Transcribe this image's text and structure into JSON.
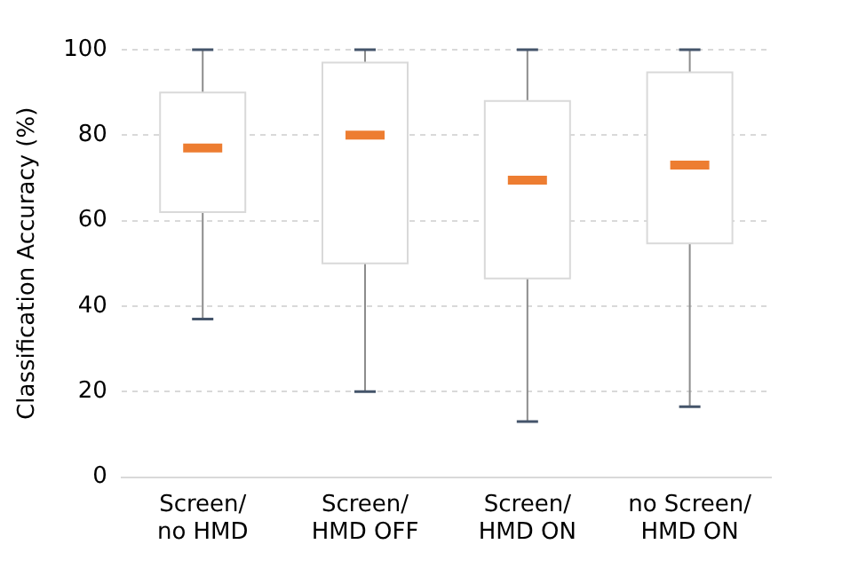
{
  "chart_data": {
    "type": "box",
    "ylabel": "Classification Accuracy (%)",
    "categories": [
      "Screen/\nno HMD",
      "Screen/\nHMD OFF",
      "Screen/\nHMD ON",
      "no Screen/\nHMD ON"
    ],
    "boxes": [
      {
        "low": 37,
        "q1": 62,
        "median": 77,
        "q3": 90,
        "high": 100
      },
      {
        "low": 20,
        "q1": 50,
        "median": 80,
        "q3": 97,
        "high": 100
      },
      {
        "low": 13,
        "q1": 46.5,
        "median": 69.5,
        "q3": 88,
        "high": 100
      },
      {
        "low": 16.5,
        "q1": 54.7,
        "median": 73,
        "q3": 94.7,
        "high": 100
      }
    ],
    "color": "#ffffff",
    "ylim": [
      0,
      100
    ],
    "yticks": [
      0,
      20,
      40,
      60,
      80,
      100
    ],
    "grid": "y",
    "legend": false
  }
}
